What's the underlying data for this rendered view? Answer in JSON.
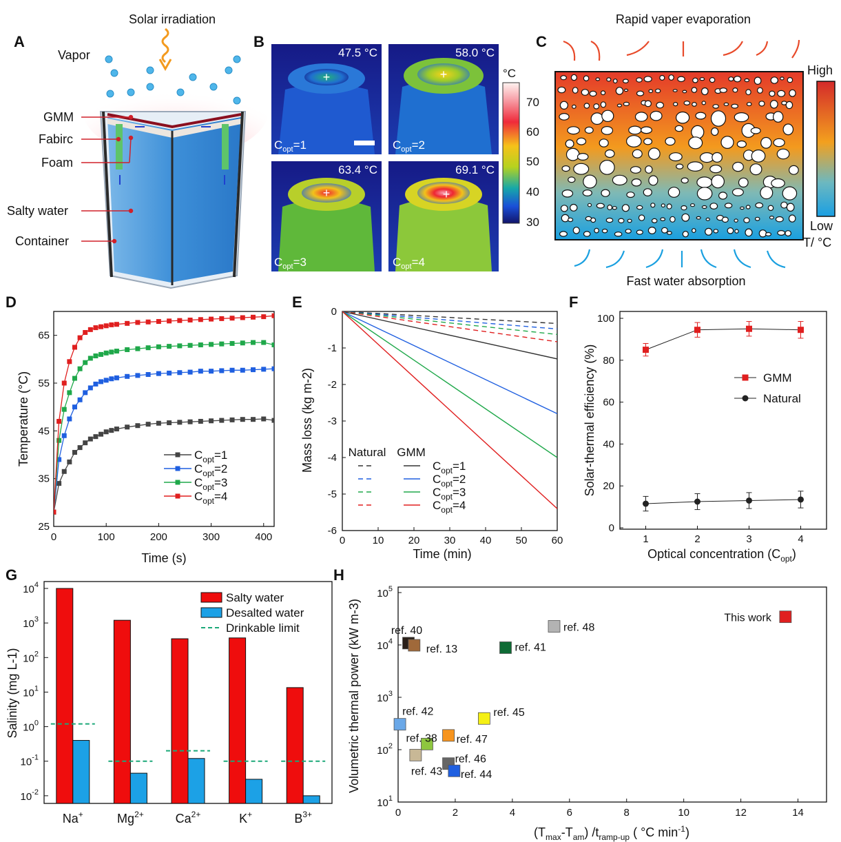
{
  "panels": {
    "A": "A",
    "B": "B",
    "C": "C",
    "D": "D",
    "E": "E",
    "F": "F",
    "G": "G",
    "H": "H"
  },
  "panelA": {
    "solar": "Solar irradiation",
    "vapor": "Vapor",
    "labels": [
      "GMM",
      "Fabirc",
      "Foam",
      "Salty water",
      "Container"
    ]
  },
  "panelB": {
    "temps": [
      "47.5 °C",
      "58.0 °C",
      "63.4 °C",
      "69.1 °C"
    ],
    "copt_labels": [
      "C",
      "C",
      "C",
      "C"
    ],
    "copt_sub": "opt",
    "copt_vals": [
      "=1",
      "=2",
      "=3",
      "=4"
    ],
    "colorbar_unit": "°C",
    "colorbar_ticks": [
      "70",
      "60",
      "50",
      "40",
      "30"
    ]
  },
  "panelC": {
    "top": "Rapid vaper evaporation",
    "bottom": "Fast water absorption",
    "high": "High",
    "low": "Low",
    "unit": "T/ °C"
  },
  "chart_data": [
    {
      "panel": "D",
      "type": "line",
      "xlabel": "Time (s)",
      "ylabel": "Temperature (°C)",
      "xlim": [
        0,
        420
      ],
      "ylim": [
        25,
        70
      ],
      "xticks": [
        0,
        100,
        200,
        300,
        400
      ],
      "yticks": [
        25,
        35,
        45,
        55,
        65
      ],
      "x": [
        0,
        10,
        20,
        30,
        40,
        50,
        60,
        70,
        80,
        90,
        100,
        110,
        120,
        140,
        160,
        180,
        200,
        220,
        240,
        260,
        280,
        300,
        320,
        340,
        360,
        380,
        400,
        420
      ],
      "series": [
        {
          "name": "C_opt=1",
          "color": "#444444",
          "values": [
            28,
            34,
            36.5,
            38.5,
            40.5,
            41.5,
            42.5,
            43.3,
            43.8,
            44.3,
            44.8,
            45.1,
            45.4,
            45.8,
            46.1,
            46.4,
            46.6,
            46.7,
            46.8,
            46.9,
            47.0,
            47.1,
            47.2,
            47.3,
            47.4,
            47.4,
            47.5,
            47.2
          ]
        },
        {
          "name": "C_opt=2",
          "color": "#1f5fe0",
          "values": [
            28,
            39,
            44,
            47.5,
            50,
            51.5,
            53,
            54,
            54.8,
            55.3,
            55.6,
            55.9,
            56.1,
            56.4,
            56.6,
            56.8,
            57.0,
            57.1,
            57.2,
            57.3,
            57.5,
            57.5,
            57.6,
            57.7,
            57.7,
            57.8,
            57.9,
            58.0
          ]
        },
        {
          "name": "C_opt=3",
          "color": "#1fa84a",
          "values": [
            28,
            43,
            49.5,
            53,
            56,
            58,
            59.3,
            60.2,
            60.7,
            61.0,
            61.3,
            61.5,
            61.7,
            62.0,
            62.2,
            62.4,
            62.6,
            62.7,
            62.8,
            62.9,
            63.0,
            63.1,
            63.2,
            63.3,
            63.4,
            63.5,
            63.5,
            63.0
          ]
        },
        {
          "name": "C_opt=4",
          "color": "#e01f1f",
          "values": [
            28,
            47,
            55,
            59.5,
            62.5,
            64.5,
            65.6,
            66.2,
            66.6,
            66.8,
            67.0,
            67.2,
            67.3,
            67.5,
            67.7,
            67.8,
            67.9,
            68.0,
            68.1,
            68.2,
            68.3,
            68.4,
            68.5,
            68.6,
            68.7,
            68.8,
            68.9,
            69.1
          ]
        }
      ],
      "legend": [
        {
          "label": "C",
          "sub": "opt",
          "val": "=1"
        },
        {
          "label": "C",
          "sub": "opt",
          "val": "=2"
        },
        {
          "label": "C",
          "sub": "opt",
          "val": "=3"
        },
        {
          "label": "C",
          "sub": "opt",
          "val": "=4"
        }
      ]
    },
    {
      "panel": "E",
      "type": "line",
      "xlabel": "Time (min)",
      "ylabel": "Mass loss (kg m-2)",
      "xlim": [
        0,
        60
      ],
      "ylim": [
        -6,
        0
      ],
      "xticks": [
        0,
        10,
        20,
        30,
        40,
        50,
        60
      ],
      "yticks": [
        0,
        -1,
        -2,
        -3,
        -4,
        -5,
        -6
      ],
      "series": [
        {
          "name": "Natural C_opt=1",
          "style": "dash",
          "color": "#333333",
          "x": [
            0,
            60
          ],
          "values": [
            0,
            -0.33
          ]
        },
        {
          "name": "Natural C_opt=2",
          "style": "dash",
          "color": "#1f5fe0",
          "x": [
            0,
            60
          ],
          "values": [
            0,
            -0.48
          ]
        },
        {
          "name": "Natural C_opt=3",
          "style": "dash",
          "color": "#1fa84a",
          "x": [
            0,
            60
          ],
          "values": [
            0,
            -0.63
          ]
        },
        {
          "name": "Natural C_opt=4",
          "style": "dash",
          "color": "#e01f1f",
          "x": [
            0,
            60
          ],
          "values": [
            0,
            -0.83
          ]
        },
        {
          "name": "GMM C_opt=1",
          "style": "solid",
          "color": "#333333",
          "x": [
            0,
            60
          ],
          "values": [
            0,
            -1.3
          ]
        },
        {
          "name": "GMM C_opt=2",
          "style": "solid",
          "color": "#1f5fe0",
          "x": [
            0,
            60
          ],
          "values": [
            0,
            -2.8
          ]
        },
        {
          "name": "GMM C_opt=3",
          "style": "solid",
          "color": "#1fa84a",
          "x": [
            0,
            60
          ],
          "values": [
            0,
            -4.0
          ]
        },
        {
          "name": "GMM C_opt=4",
          "style": "solid",
          "color": "#e01f1f",
          "x": [
            0,
            60
          ],
          "values": [
            0,
            -5.4
          ]
        }
      ],
      "legend_headers": [
        "Natural",
        "GMM"
      ],
      "legend": [
        {
          "label": "C",
          "sub": "opt",
          "val": "=1"
        },
        {
          "label": "C",
          "sub": "opt",
          "val": "=2"
        },
        {
          "label": "C",
          "sub": "opt",
          "val": "=3"
        },
        {
          "label": "C",
          "sub": "opt",
          "val": "=4"
        }
      ]
    },
    {
      "panel": "F",
      "type": "line",
      "xlabel": "Optical concentration (C",
      "xlabel_sub": "opt",
      "xlabel_end": ")",
      "ylabel": "Solar-thermal efficiency (%)",
      "xlim": [
        0.5,
        4.5
      ],
      "ylim": [
        0,
        100
      ],
      "xticks": [
        1,
        2,
        3,
        4
      ],
      "yticks": [
        0,
        20,
        40,
        60,
        80,
        100
      ],
      "x": [
        1,
        2,
        3,
        4
      ],
      "series": [
        {
          "name": "GMM",
          "color": "#e01f1f",
          "values": [
            85,
            94.5,
            95,
            94.5
          ],
          "err": [
            3,
            3.5,
            3.5,
            4
          ]
        },
        {
          "name": "Natural",
          "color": "#222222",
          "values": [
            11.5,
            12.5,
            13,
            13.5
          ],
          "err": [
            3.5,
            3.8,
            3.8,
            4
          ]
        }
      ]
    },
    {
      "panel": "G",
      "type": "bar",
      "ylabel": "Salinity (mg L-1)",
      "yscale": "log",
      "ylim": [
        0.006,
        10000
      ],
      "yticks": [
        "10-2",
        "10-1",
        "100",
        "101",
        "102",
        "103",
        "104"
      ],
      "categories": [
        "Na",
        "Mg",
        "Ca",
        "K",
        "B"
      ],
      "category_sups": [
        "+",
        "2+",
        "2+",
        "+",
        "3+"
      ],
      "series": [
        {
          "name": "Salty water",
          "color": "#ef0d0d",
          "values": [
            10000,
            1200,
            350,
            370,
            13.5
          ]
        },
        {
          "name": "Desalted water",
          "color": "#1ca1e6",
          "values": [
            0.4,
            0.045,
            0.12,
            0.03,
            0.01
          ]
        }
      ],
      "drinkable_limit": {
        "name": "Drinkable limit",
        "color": "#1aa878",
        "values": [
          1.2,
          0.1,
          0.2,
          0.1,
          0.1
        ]
      }
    },
    {
      "panel": "H",
      "type": "scatter",
      "xlabel": "(T",
      "xlabel_parts": [
        "(T",
        "max",
        "-T",
        "am",
        ") /t",
        "ramp-up",
        " ( °C min",
        "-1",
        ")"
      ],
      "ylabel": "Volumetric thermal power (kW m-3)",
      "xlim": [
        0,
        15
      ],
      "ylim": [
        10,
        100000
      ],
      "yscale": "log",
      "xticks": [
        0,
        2,
        4,
        6,
        8,
        10,
        12,
        14
      ],
      "yticks_exp": [
        "1",
        "2",
        "3",
        "4",
        "5"
      ],
      "points": [
        {
          "label": "ref. 40",
          "x": 0.35,
          "y": 11000,
          "color": "#2a1f18"
        },
        {
          "label": "ref. 13",
          "x": 0.55,
          "y": 10000,
          "color": "#a0693a"
        },
        {
          "label": "ref. 48",
          "x": 5.45,
          "y": 23000,
          "color": "#b3b3b3"
        },
        {
          "label": "ref. 41",
          "x": 3.75,
          "y": 9000,
          "color": "#0f6b35"
        },
        {
          "label": "ref. 42",
          "x": 0.05,
          "y": 310,
          "color": "#6aa8e8"
        },
        {
          "label": "ref. 45",
          "x": 3.0,
          "y": 400,
          "color": "#f5f014"
        },
        {
          "label": "ref. 38",
          "x": 1.0,
          "y": 130,
          "color": "#8ec63f"
        },
        {
          "label": "ref. 47",
          "x": 1.75,
          "y": 190,
          "color": "#f7941d"
        },
        {
          "label": "ref. 43",
          "x": 0.6,
          "y": 80,
          "color": "#c8b896"
        },
        {
          "label": "ref. 46",
          "x": 1.75,
          "y": 55,
          "color": "#666666"
        },
        {
          "label": "ref. 44",
          "x": 1.95,
          "y": 40,
          "color": "#1f5fe0"
        },
        {
          "label": "This work",
          "x": 13.55,
          "y": 35000,
          "color": "#e01f1f"
        }
      ]
    }
  ]
}
